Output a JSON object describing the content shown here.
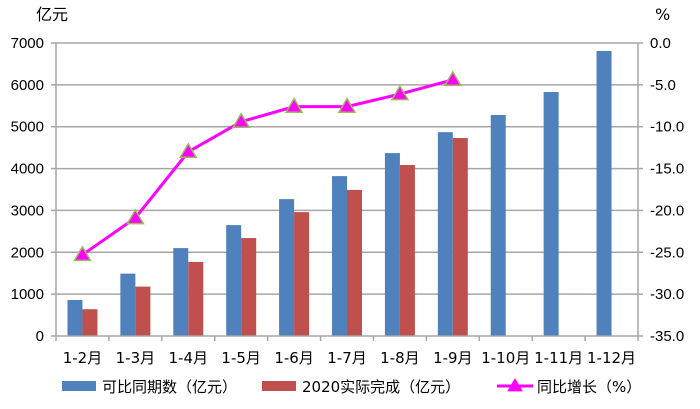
{
  "chart_data": {
    "type": "bar",
    "title": "",
    "xlabel": "",
    "ylabel": "亿元",
    "y2label": "%",
    "categories": [
      "1-2月",
      "1-3月",
      "1-4月",
      "1-5月",
      "1-6月",
      "1-7月",
      "1-8月",
      "1-9月",
      "1-10月",
      "1-11月",
      "1-12月"
    ],
    "ylim": [
      0,
      7000
    ],
    "yticks": [
      0,
      1000,
      2000,
      3000,
      4000,
      5000,
      6000,
      7000
    ],
    "y2lim": [
      -35.0,
      0.0
    ],
    "y2ticks": [
      "0.0",
      "-5.0",
      "-10.0",
      "-15.0",
      "-20.0",
      "-25.0",
      "-30.0",
      "-35.0"
    ],
    "grid": true,
    "legend_position": "bottom",
    "series": [
      {
        "name": "可比同期数（亿元）",
        "type": "bar",
        "axis": "left",
        "color": "#4F81BD",
        "values": [
          860,
          1490,
          2100,
          2650,
          3270,
          3820,
          4370,
          4870,
          5280,
          5830,
          6810
        ]
      },
      {
        "name": "2020实际完成（亿元）",
        "type": "bar",
        "axis": "left",
        "color": "#C0504D",
        "values": [
          640,
          1180,
          1770,
          2340,
          2960,
          3490,
          4085,
          4730,
          null,
          null,
          null
        ]
      },
      {
        "name": "同比增长（%）",
        "type": "line",
        "axis": "right",
        "color": "#FF00FF",
        "marker": "triangle",
        "marker_edge_color": "#9BBB59",
        "values": [
          -25.3,
          -20.9,
          -13.0,
          -9.4,
          -7.6,
          -7.6,
          -6.1,
          -4.4,
          null,
          null,
          null
        ]
      }
    ]
  }
}
